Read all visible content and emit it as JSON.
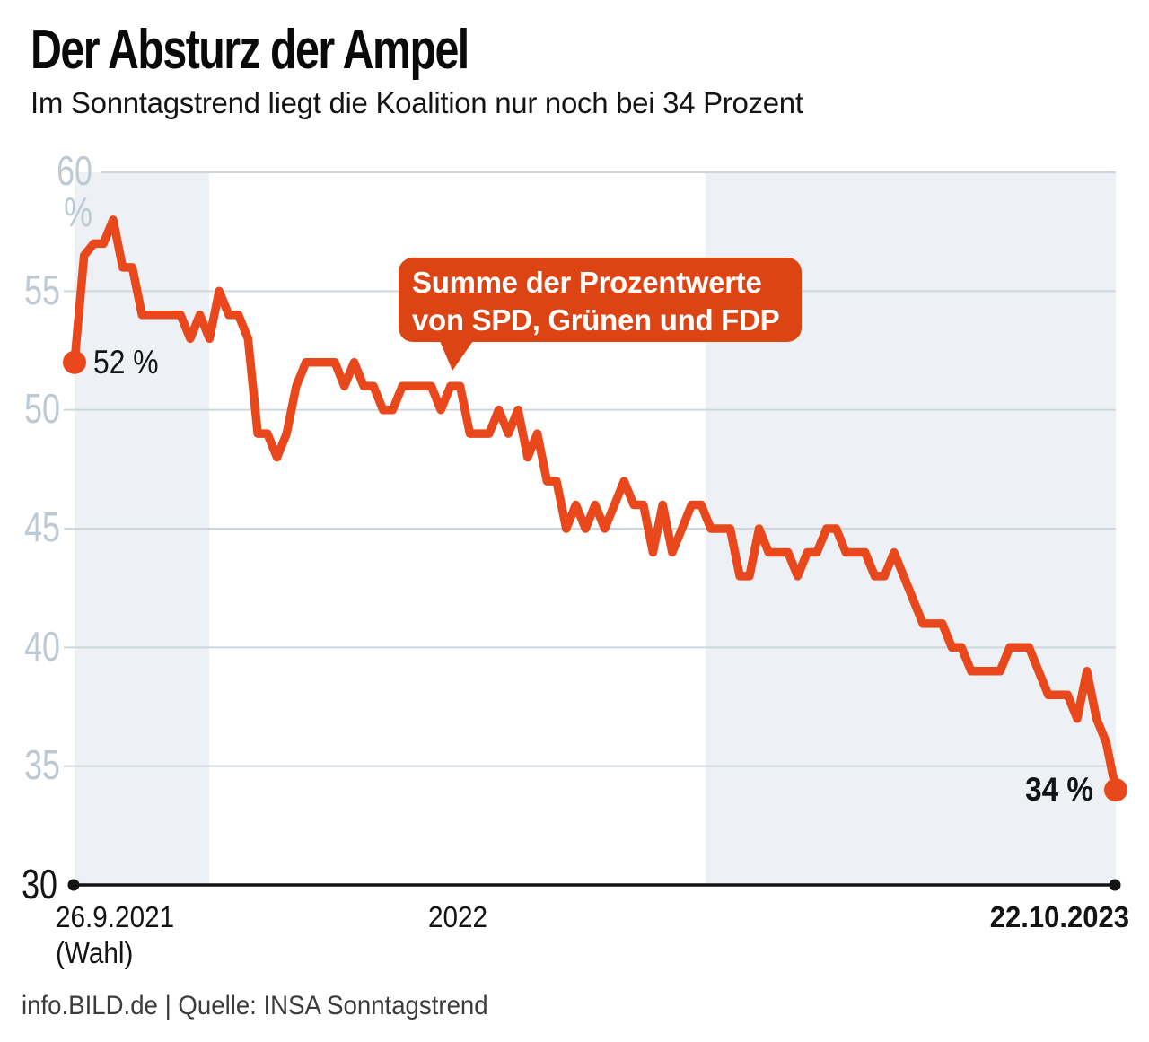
{
  "chart_data": {
    "type": "line",
    "title": "Der Absturz der Ampel",
    "subtitle": "Im Sonntagstrend liegt die Koalition nur noch bei 34 Prozent",
    "series": [
      {
        "name": "Summe der Prozentwerte von SPD, Grünen und FDP",
        "x_unit": "Woche (wöchentliche Sonntagstrend-Umfrage, 26.9.2021 bis 22.10.2023)",
        "values": [
          52,
          56.5,
          57,
          57,
          58,
          56,
          56,
          54,
          54,
          54,
          54,
          54,
          53,
          54,
          53,
          55,
          54,
          54,
          53,
          49,
          49,
          48,
          49,
          51,
          52,
          52,
          52,
          52,
          51,
          52,
          51,
          51,
          50,
          50,
          51,
          51,
          51,
          51,
          50,
          51,
          51,
          49,
          49,
          49,
          50,
          49,
          50,
          48,
          49,
          47,
          47,
          45,
          46,
          45,
          46,
          45,
          46,
          47,
          46,
          46,
          44,
          46,
          44,
          45,
          46,
          46,
          45,
          45,
          45,
          43,
          43,
          45,
          44,
          44,
          44,
          43,
          44,
          44,
          45,
          45,
          44,
          44,
          44,
          43,
          43,
          44,
          43,
          42,
          41,
          41,
          41,
          40,
          40,
          39,
          39,
          39,
          39,
          40,
          40,
          40,
          39,
          38,
          38,
          38,
          37,
          39,
          37,
          36,
          34
        ]
      }
    ],
    "ylim": [
      30,
      60
    ],
    "y_tick_labels": [
      "60 %",
      "55",
      "50",
      "45",
      "40",
      "35",
      "30"
    ],
    "y_tick_values": [
      60,
      55,
      50,
      45,
      40,
      35,
      30
    ],
    "x_tick_labels": [
      "26.9.2021",
      "(Wahl)",
      "2022",
      "22.10.2023"
    ],
    "grid": true,
    "legend": false,
    "shaded_periods": [
      "26.9.2021–31.12.2021",
      "1.1.2023–22.10.2023"
    ],
    "annotation": {
      "line1": "Summe der Prozentwerte",
      "line2": "von SPD, Grünen und FDP"
    },
    "point_labels": {
      "start": "52 %",
      "end": "34 %"
    },
    "start_value": 52,
    "end_value": 34,
    "colors": {
      "line": "#e8481b",
      "callout_bg": "#dc4513",
      "shaded_band": "#edf1f5",
      "gridline": "#cdd6dd",
      "axis": "#141414",
      "y_tick_pale": "#bdc9d3",
      "text": "#141414",
      "source_text": "#3c3c3c"
    }
  },
  "footer": {
    "source": "info.BILD.de | Quelle: INSA Sonntagstrend"
  }
}
